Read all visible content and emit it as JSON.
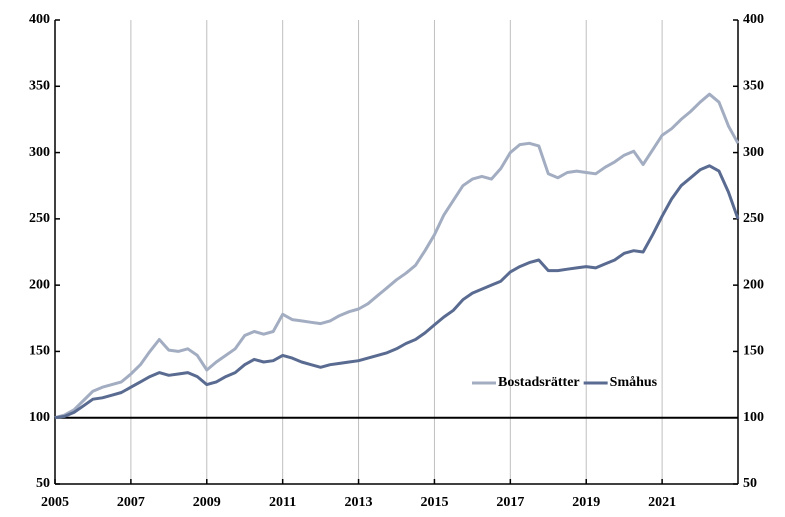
{
  "chart_data": {
    "type": "line",
    "x": [
      2005,
      2005.25,
      2005.5,
      2005.75,
      2006,
      2006.25,
      2006.5,
      2006.75,
      2007,
      2007.25,
      2007.5,
      2007.75,
      2008,
      2008.25,
      2008.5,
      2008.75,
      2009,
      2009.25,
      2009.5,
      2009.75,
      2010,
      2010.25,
      2010.5,
      2010.75,
      2011,
      2011.25,
      2011.5,
      2011.75,
      2012,
      2012.25,
      2012.5,
      2012.75,
      2013,
      2013.25,
      2013.5,
      2013.75,
      2014,
      2014.25,
      2014.5,
      2014.75,
      2015,
      2015.25,
      2015.5,
      2015.75,
      2016,
      2016.25,
      2016.5,
      2016.75,
      2017,
      2017.25,
      2017.5,
      2017.75,
      2018,
      2018.25,
      2018.5,
      2018.75,
      2019,
      2019.25,
      2019.5,
      2019.75,
      2020,
      2020.25,
      2020.5,
      2020.75,
      2021,
      2021.25,
      2021.5,
      2021.75,
      2022,
      2022.25,
      2022.5,
      2022.75,
      2023
    ],
    "series": [
      {
        "name": "Bostadsrätter",
        "color": "#a3adc2",
        "values": [
          100,
          102,
          106,
          113,
          120,
          123,
          125,
          127,
          133,
          140,
          150,
          159,
          151,
          150,
          152,
          147,
          136,
          142,
          147,
          152,
          162,
          165,
          163,
          165,
          178,
          174,
          173,
          172,
          171,
          173,
          177,
          180,
          182,
          186,
          192,
          198,
          204,
          209,
          215,
          226,
          238,
          253,
          264,
          275,
          280,
          282,
          280,
          288,
          300,
          306,
          307,
          305,
          284,
          281,
          285,
          286,
          285,
          284,
          289,
          293,
          298,
          301,
          291,
          302,
          313,
          318,
          325,
          331,
          338,
          344,
          338,
          320,
          307
        ]
      },
      {
        "name": "Småhus",
        "color": "#5a6b91",
        "values": [
          100,
          101,
          104,
          109,
          114,
          115,
          117,
          119,
          123,
          127,
          131,
          134,
          132,
          133,
          134,
          131,
          125,
          127,
          131,
          134,
          140,
          144,
          142,
          143,
          147,
          145,
          142,
          140,
          138,
          140,
          141,
          142,
          143,
          145,
          147,
          149,
          152,
          156,
          159,
          164,
          170,
          176,
          181,
          189,
          194,
          197,
          200,
          203,
          210,
          214,
          217,
          219,
          211,
          211,
          212,
          213,
          214,
          213,
          216,
          219,
          224,
          226,
          225,
          238,
          252,
          265,
          275,
          281,
          287,
          290,
          286,
          270,
          250
        ]
      }
    ],
    "xlim": [
      2005,
      2023
    ],
    "xticks": [
      2005,
      2007,
      2009,
      2011,
      2013,
      2015,
      2017,
      2019,
      2021
    ],
    "ylim": [
      50,
      400
    ],
    "yticks": [
      50,
      100,
      150,
      200,
      250,
      300,
      350,
      400
    ],
    "y2lim": [
      50,
      400
    ],
    "y2ticks": [
      50,
      100,
      150,
      200,
      250,
      300,
      350,
      400
    ],
    "hline": 100,
    "grid": true,
    "legend": "lower right"
  }
}
